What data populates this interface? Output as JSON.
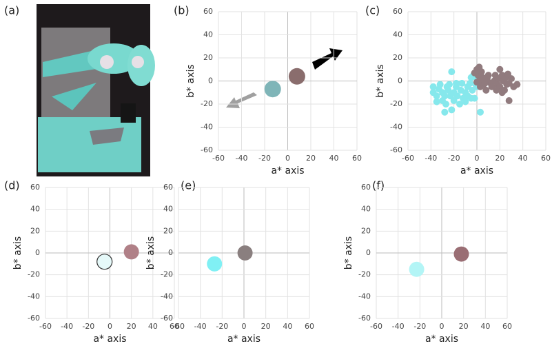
{
  "photo_label": "(a)",
  "chart_data": [
    {
      "type": "scatter",
      "title": "(b)",
      "xlabel": "a* axis",
      "ylabel": "b* axis",
      "xlim": [
        -60,
        60
      ],
      "ylim": [
        -60,
        60
      ],
      "xticks": [
        -60,
        -40,
        -20,
        0,
        20,
        40,
        60
      ],
      "yticks": [
        -60,
        -40,
        -20,
        0,
        20,
        40,
        60
      ],
      "grid": true,
      "series": [
        {
          "color": "#7fb5b8",
          "x": [
            -13
          ],
          "y": [
            -7
          ]
        },
        {
          "color": "#8a6d6d",
          "x": [
            8
          ],
          "y": [
            4
          ]
        }
      ]
    },
    {
      "type": "scatter",
      "title": "(c)",
      "xlabel": "a* axis",
      "ylabel": "b* axis",
      "xlim": [
        -60,
        60
      ],
      "ylim": [
        -60,
        60
      ],
      "xticks": [
        -60,
        -40,
        -20,
        0,
        20,
        40,
        60
      ],
      "yticks": [
        -60,
        -40,
        -20,
        0,
        20,
        40,
        60
      ],
      "grid": true,
      "series": [
        {
          "color": "#86e8ec",
          "x": [
            -38,
            -38,
            -35,
            -33,
            -32,
            -30,
            -30,
            -28,
            -27,
            -26,
            -25,
            -24,
            -23,
            -22,
            -20,
            -20,
            -18,
            -17,
            -15,
            -14,
            -13,
            -12,
            -10,
            -8,
            -6,
            -5,
            -4,
            -2,
            -1,
            0,
            -22,
            -28,
            -10,
            -35,
            -18,
            -8,
            -3,
            0,
            -5,
            3
          ],
          "y": [
            -5,
            -10,
            -13,
            -7,
            -3,
            -10,
            -17,
            -13,
            -20,
            -5,
            -8,
            -3,
            -13,
            -25,
            -10,
            -17,
            -5,
            -13,
            -20,
            -8,
            -2,
            -15,
            -10,
            -5,
            -2,
            3,
            -8,
            -15,
            -3,
            2,
            8,
            -27,
            -18,
            -18,
            -2,
            -13,
            5,
            -5,
            -15,
            -27
          ]
        },
        {
          "color": "#917b7e",
          "x": [
            0,
            1,
            2,
            3,
            4,
            5,
            6,
            8,
            9,
            10,
            12,
            13,
            15,
            16,
            18,
            19,
            20,
            20,
            22,
            23,
            24,
            25,
            26,
            27,
            28,
            30,
            32,
            35,
            2,
            7,
            17,
            22,
            -2,
            0,
            28
          ],
          "y": [
            10,
            5,
            0,
            -5,
            8,
            3,
            -3,
            -8,
            2,
            5,
            -2,
            -5,
            0,
            5,
            -3,
            2,
            10,
            -5,
            5,
            0,
            -8,
            3,
            -3,
            6,
            -17,
            2,
            -5,
            -3,
            12,
            -2,
            -8,
            -10,
            7,
            -1,
            -2
          ]
        }
      ]
    },
    {
      "type": "scatter",
      "title": "(d)",
      "xlabel": "a* axis",
      "ylabel": "b* axis",
      "xlim": [
        -60,
        60
      ],
      "ylim": [
        -60,
        60
      ],
      "xticks": [
        -60,
        -40,
        -20,
        0,
        20,
        40,
        60
      ],
      "yticks": [
        -60,
        -40,
        -20,
        0,
        20,
        40,
        60
      ],
      "grid": true,
      "series": [
        {
          "color": "#e6f9f9",
          "edgecolor": "#333333",
          "x": [
            -5
          ],
          "y": [
            -8
          ]
        },
        {
          "color": "#b08087",
          "x": [
            20
          ],
          "y": [
            1
          ]
        }
      ]
    },
    {
      "type": "scatter",
      "title": "(e)",
      "xlabel": "a* axis",
      "ylabel": "b* axis",
      "xlim": [
        -60,
        60
      ],
      "ylim": [
        -60,
        60
      ],
      "xticks": [
        -60,
        -40,
        -20,
        0,
        20,
        40,
        60
      ],
      "yticks": [
        -60,
        -40,
        -20,
        0,
        20,
        40,
        60
      ],
      "grid": true,
      "series": [
        {
          "color": "#80f0f4",
          "x": [
            -27
          ],
          "y": [
            -10
          ]
        },
        {
          "color": "#8a7f7f",
          "x": [
            1
          ],
          "y": [
            0
          ]
        }
      ]
    },
    {
      "type": "scatter",
      "title": "(f)",
      "xlabel": "a* axis",
      "ylabel": "b* axis",
      "xlim": [
        -60,
        60
      ],
      "ylim": [
        -60,
        60
      ],
      "xticks": [
        -60,
        -40,
        -20,
        0,
        20,
        40,
        60
      ],
      "yticks": [
        -60,
        -40,
        -20,
        0,
        20,
        40,
        60
      ],
      "grid": true,
      "series": [
        {
          "color": "#b3f5f6",
          "x": [
            -23
          ],
          "y": [
            -15
          ]
        },
        {
          "color": "#9a6e74",
          "x": [
            18
          ],
          "y": [
            -1
          ]
        }
      ]
    }
  ]
}
